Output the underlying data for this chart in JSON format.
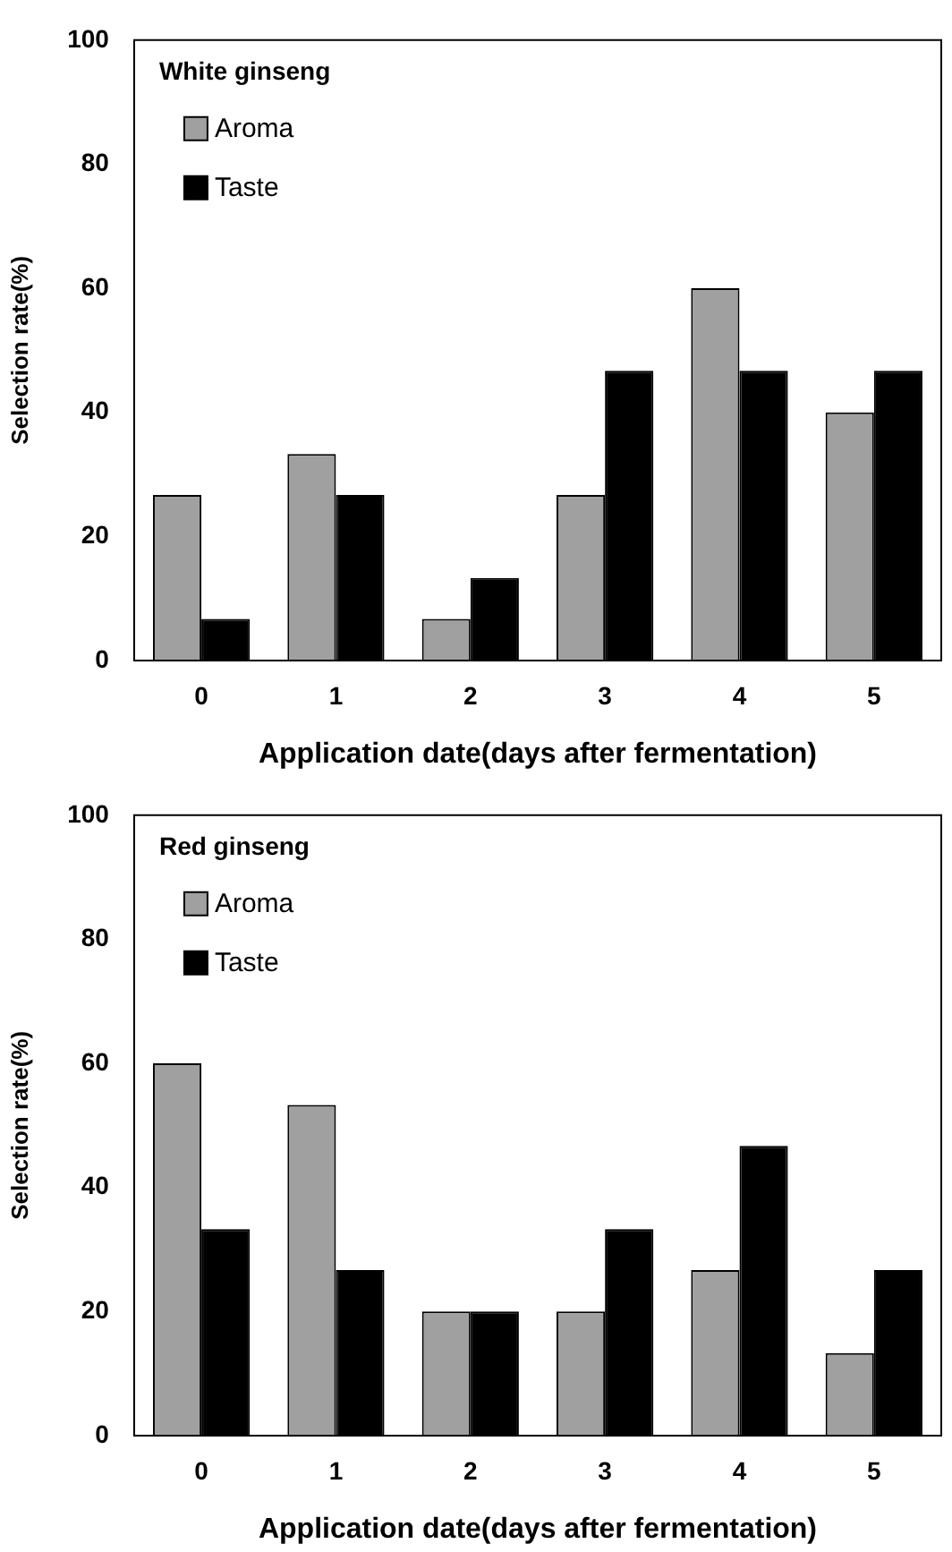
{
  "chart_data": [
    {
      "type": "bar",
      "title": "White ginseng",
      "xlabel": "Application date(days after fermentation)",
      "ylabel": "Selection rate(%)",
      "categories": [
        "0",
        "1",
        "2",
        "3",
        "4",
        "5"
      ],
      "series": [
        {
          "name": "Aroma",
          "color": "#a0a0a0",
          "values": [
            26.7,
            33.3,
            6.7,
            26.7,
            60,
            40
          ]
        },
        {
          "name": "Taste",
          "color": "#000000",
          "values": [
            6.7,
            26.7,
            13.3,
            46.7,
            46.7,
            46.7
          ]
        }
      ],
      "ylim": [
        0,
        100
      ],
      "yticks": [
        0,
        20,
        40,
        60,
        80,
        100
      ],
      "legend": "top left"
    },
    {
      "type": "bar",
      "title": "Red ginseng",
      "xlabel": "Application date(days after fermentation)",
      "ylabel": "Selection rate(%)",
      "categories": [
        "0",
        "1",
        "2",
        "3",
        "4",
        "5"
      ],
      "series": [
        {
          "name": "Aroma",
          "color": "#a0a0a0",
          "values": [
            60,
            53.3,
            20,
            20,
            26.7,
            13.3
          ]
        },
        {
          "name": "Taste",
          "color": "#000000",
          "values": [
            33.3,
            26.7,
            20,
            33.3,
            46.7,
            26.7
          ]
        }
      ],
      "ylim": [
        0,
        100
      ],
      "yticks": [
        0,
        20,
        40,
        60,
        80,
        100
      ],
      "legend": "top left"
    }
  ]
}
